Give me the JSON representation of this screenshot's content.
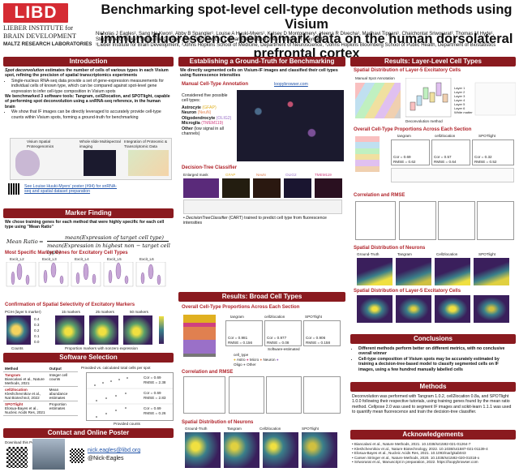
{
  "header": {
    "logo_text": "LIBD",
    "logo_lines": [
      "LIEBER INSTITUTE for",
      "BRAIN DEVELOPMENT",
      "MALTZ RESEARCH LABORATORIES"
    ],
    "title_line1": "Benchmarking spot-level cell-type deconvolution methods using Visium",
    "title_line2": "immunofluorescence benchmark data on the human dorsolateral prefrontal cortex",
    "authors_line1": "Nicholas J Eagles¹, Sang Ho Kwon¹, Abby B Spangler¹, Louise A Huuki-Myers¹, Kelsey D Montgomery¹, Heena R Divecha¹, Madhavi Tippani¹, Chaichontat Sriworarat², Thomas M Hyde¹,",
    "authors_line2": "Stephanie C Hicks³, Stephanie C Page¹, Keri Martinowich¹, Leonardo Collado-Torres¹, Kristen R Maynard¹",
    "affiliations": "¹Lieber Institute for Brain Development, ²Johns Hopkins School of Medicine, Department of Neuroscience, ³Johns Hopkins Bloomberg School of Public Health, Department of Biostatistics"
  },
  "intro": {
    "heading": "Introduction",
    "p1_lead": "Spot deconvolution",
    "p1_rest": " estimates the number of cells of various types in each Visium spot, refining the precision of spatial transcriptomics experiments",
    "bullet1": "Single-nucleus RNA-seq data provide a set of gene-expression measurements for individual cells of known type, which can be compared against spot-level gene expression to infer cell-type composition in Visium spots",
    "p2": "We benchmarked 3 software tools: Tangram, cell2location, and SPOTlight, capable of performing spot deconvolution using a snRNA-seq reference, in the human brain",
    "bullet2": "We show that IF images can be directly leveraged to accurately provide cell-type counts within Visium spots, forming a ground-truth for benchmarking",
    "fig_labels": [
      "Visium Spatial Proteogenomics",
      "Whole slide Multispectral imaging",
      "Integration of Proteomic & Transcriptomic Data"
    ],
    "link_text": "See Louise Huuki-Myers' poster (#94) for snRNA-seq and spatial dataset preparation"
  },
  "marker": {
    "heading": "Marker Finding",
    "p1": "We chose training genes for each method that were highly specific for each cell type using \"Mean Ratio\"",
    "formula_lhs": "Mean Ratio",
    "formula_num": "mean(Expression of target cell type)",
    "formula_den": "mean(Expression in highest non − target cell type)",
    "sub1": "Most Specific Marker Genes for Excitatory Cell Types",
    "panel_labels": [
      "Excit_L2",
      "Excit_L3",
      "Excit_L4",
      "Excit_L5",
      "Excit_L6"
    ],
    "sub2": "Confirmation of Spatial Selectivity of Excitatory Markers",
    "pcs_label": "PCIH (layer 5 marker)",
    "col_labels": [
      "15 markers",
      "25 markers",
      "50 markers"
    ],
    "axis_labels": [
      "Counts",
      "Proportion markers with nonzero expression"
    ],
    "scale_ticks": [
      "0.4",
      "0.3",
      "0.2",
      "0.1",
      "0.0"
    ]
  },
  "software": {
    "heading": "Software Selection",
    "col1": "Method",
    "col2": "Output",
    "rows": [
      {
        "name": "Tangram",
        "ref": "Biancalani et al., Nature Methods, 2021",
        "output": "Integer cell counts"
      },
      {
        "name": "cell2location",
        "ref": "Kleshchevnikov et al., Nat Biotechnol, 2022",
        "output": "Mean abundance estimates"
      },
      {
        "name": "SPOTlight",
        "ref": "Elosua-Bayes et al., Nucleic Acids Res, 2021",
        "output": "Proportion estimates"
      }
    ],
    "scatter_title": "Provided vs. calculated total cells per spot",
    "scatter_xlabel": "Provided counts",
    "scatter_stats": [
      "Cor = 0.69",
      "RMSE = 2.38",
      "Cor = 0.69",
      "RMSE = 2.83",
      "Cor = 0.69",
      "RMSE = 0.26"
    ]
  },
  "contact": {
    "heading": "Contact and Online Poster",
    "download": "Download this Poster:",
    "email": "nick.eagles@libd.org",
    "handle": "@Nick-Eagles"
  },
  "groundtruth": {
    "heading": "Establishing a Ground-Truth for Benchmarking",
    "intro": "We directly segmented cells on Visium-IF images and classified their cell types using fluorescence intensities",
    "sub1": "Manual Cell-Type Annotation",
    "link": "loopybrowser.com",
    "considered": "Considered five possible cell types:",
    "types": [
      {
        "name": "Astrocyte",
        "marker": "(GFAP)",
        "color": "#e0b020"
      },
      {
        "name": "Neuron",
        "marker": "(NeuN)",
        "color": "#e08050"
      },
      {
        "name": "Oligodendrocyte",
        "marker": "(OLIG2)",
        "color": "#9a70c8"
      },
      {
        "name": "Microglia",
        "marker": "(TMEM119)",
        "color": "#d04080"
      },
      {
        "name": "Other",
        "marker": "(low signal in all channels)",
        "color": "#111111"
      }
    ],
    "sub2": "Decision-Tree Classifier",
    "tree_labels": [
      "Enlarged mask",
      "GFAP",
      "NeuN",
      "OLIG2",
      "TMEM119"
    ],
    "tree_desc_lead": "DecisionTreeClassifier",
    "tree_desc_rest": " (CART) trained to predict cell type from fluorescence intensities"
  },
  "broad": {
    "heading": "Results: Broad Cell Types",
    "sub1": "Overall Cell-Type Proportions Across Each Section",
    "col_labels": [
      "tangram",
      "cell2location",
      "SPOTlight"
    ],
    "xlabel": "Software-estimated",
    "legend_title": "cell_type",
    "legend_items": [
      "Astro",
      "Micro",
      "Neuron",
      "Oligo",
      "Other"
    ],
    "legend_colors": [
      "#e0b020",
      "#d04080",
      "#e08050",
      "#9a70c8",
      "#777777"
    ],
    "stats": [
      "Cor = 0.981",
      "RMSE = 0.156",
      "Cor = 0.977",
      "RMSE = 0.08",
      "Cor = 0.906",
      "RMSE = 0.158"
    ],
    "sub2": "Correlation and RMSE",
    "sub3": "Spatial Distribution of Neurons",
    "neuron_labels": [
      "Ground-Truth",
      "Tangram",
      "Cell2location",
      "SPOTlight"
    ]
  },
  "layer": {
    "heading": "Results: Layer-Level Cell Types",
    "sub1": "Spatial Distribution of Layer-5 Excitatory Cells",
    "manual": "Manual Spot Annotation",
    "layers": [
      "Layer 1",
      "Layer 2",
      "Layer 3",
      "Layer 4",
      "Layer 5",
      "Layer 6",
      "White matter"
    ],
    "box_ylabel": "Deconvolution total",
    "box_xlabel": "Deconvolution method",
    "sub2": "Overall Cell-Type Proportions Across Each Section",
    "col_labels": [
      "tangram",
      "cell2location",
      "SPOTlight"
    ],
    "stats": [
      "Cor = 0.69",
      "RMSE = 0.62",
      "Cor = 0.57",
      "RMSE = 0.64",
      "Cor = 0.32",
      "RMSE = 0.52"
    ],
    "sub3": "Correlation and RMSE",
    "sub4": "Spatial Distribution of Neurons",
    "sub5": "Spatial Distribution of Layer-5  Excitatory Cells",
    "img_labels": [
      "Ground-Truth",
      "Tangram",
      "Cell2location",
      "SPOTlight"
    ]
  },
  "conclusions": {
    "heading": "Conclusions",
    "b1": "Different methods perform better on different metrics, with no conclusive overall winner",
    "b2": "Cell-type composition of Visium spots may be accurately estimated by training a decision-tree-based model to classify segmented cells on IF images, using a few hundred manually labelled cells"
  },
  "methods": {
    "heading": "Methods",
    "text": "Deconvolution was performed with Tangram 1.0.2, cell2location 0.8a, and SPOTlight 1.0.0 following their respective tutorials, using training genes found by the mean ratio method. Cellpose 2.0 was used to segment IF images and scikit-learn 1.1.1 was used to quantify mean fluorescence and train the decision-tree classifier."
  },
  "ack": {
    "heading": "Acknowledgements",
    "refs": [
      "Biancalani et al., Nature Methods, 2021. 10.1038/s41592-021-01264-7",
      "Kleshchevnikov et al., Nature Biotechnology, 2022. 10.1038/s41587-021-01139-4",
      "Elosua-Bayes et al., Nucleic Acids Res, 2021. 10.1093/nar/gkab043",
      "Carsen Stringer et al., Nature Methods, 2020. 10.1038/s41592-020-01018-x",
      "Sriworarat et al., Manuscript in preparation, 2022. https://loopybrowser.com"
    ]
  }
}
